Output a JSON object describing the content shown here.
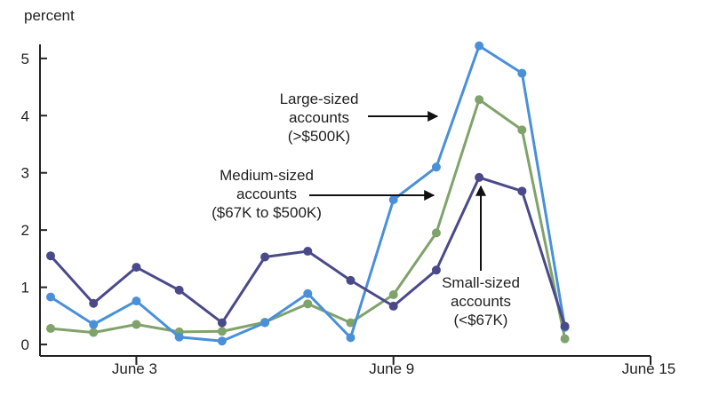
{
  "chart_data": {
    "type": "line",
    "unit_label": "percent",
    "x": [
      "June 1",
      "June 2",
      "June 3",
      "June 4",
      "June 5",
      "June 6",
      "June 7",
      "June 8",
      "June 9",
      "June 10",
      "June 11",
      "June 12",
      "June 13"
    ],
    "xticks": [
      {
        "x": "June 3",
        "label": "June 3"
      },
      {
        "x": "June 9",
        "label": "June 9"
      },
      {
        "x": "June 15",
        "label": "June 15"
      }
    ],
    "yticks": [
      0,
      1,
      2,
      3,
      4,
      5
    ],
    "ylim": [
      -0.2,
      5.4
    ],
    "xlim": [
      "June 1",
      "June 15"
    ],
    "grid": false,
    "series": [
      {
        "key": "large",
        "color": "#4a90d9",
        "x": [
          "June 1",
          "June 2",
          "June 3",
          "June 4",
          "June 5",
          "June 6",
          "June 7",
          "June 8",
          "June 9",
          "June 10",
          "June 11",
          "June 12",
          "June 13"
        ],
        "values": [
          0.83,
          0.35,
          0.76,
          0.13,
          0.06,
          0.38,
          0.89,
          0.12,
          2.53,
          3.1,
          5.22,
          4.74,
          0.3
        ]
      },
      {
        "key": "medium",
        "color": "#7fa36a",
        "x": [
          "June 1",
          "June 2",
          "June 3",
          "June 4",
          "June 5",
          "June 6",
          "June 7",
          "June 8",
          "June 9",
          "June 10",
          "June 11",
          "June 12",
          "June 13"
        ],
        "values": [
          0.28,
          0.21,
          0.35,
          0.22,
          0.23,
          0.39,
          0.71,
          0.38,
          0.87,
          1.95,
          4.28,
          3.75,
          0.1
        ]
      },
      {
        "key": "small",
        "color": "#4a4a8a",
        "x": [
          "June 1",
          "June 2",
          "June 3",
          "June 4",
          "June 5",
          "June 6",
          "June 7",
          "June 8",
          "June 9",
          "June 10",
          "June 11",
          "June 12",
          "June 13"
        ],
        "values": [
          1.55,
          0.72,
          1.35,
          0.95,
          0.38,
          1.53,
          1.63,
          1.12,
          0.67,
          1.3,
          2.92,
          2.68,
          0.32
        ]
      }
    ],
    "annotations": {
      "large": [
        "Large-sized",
        "accounts",
        "(>$500K)"
      ],
      "medium": [
        "Medium-sized",
        "accounts",
        "($67K to $500K)"
      ],
      "small": [
        "Small-sized",
        "accounts",
        "(<$67K)"
      ]
    }
  }
}
